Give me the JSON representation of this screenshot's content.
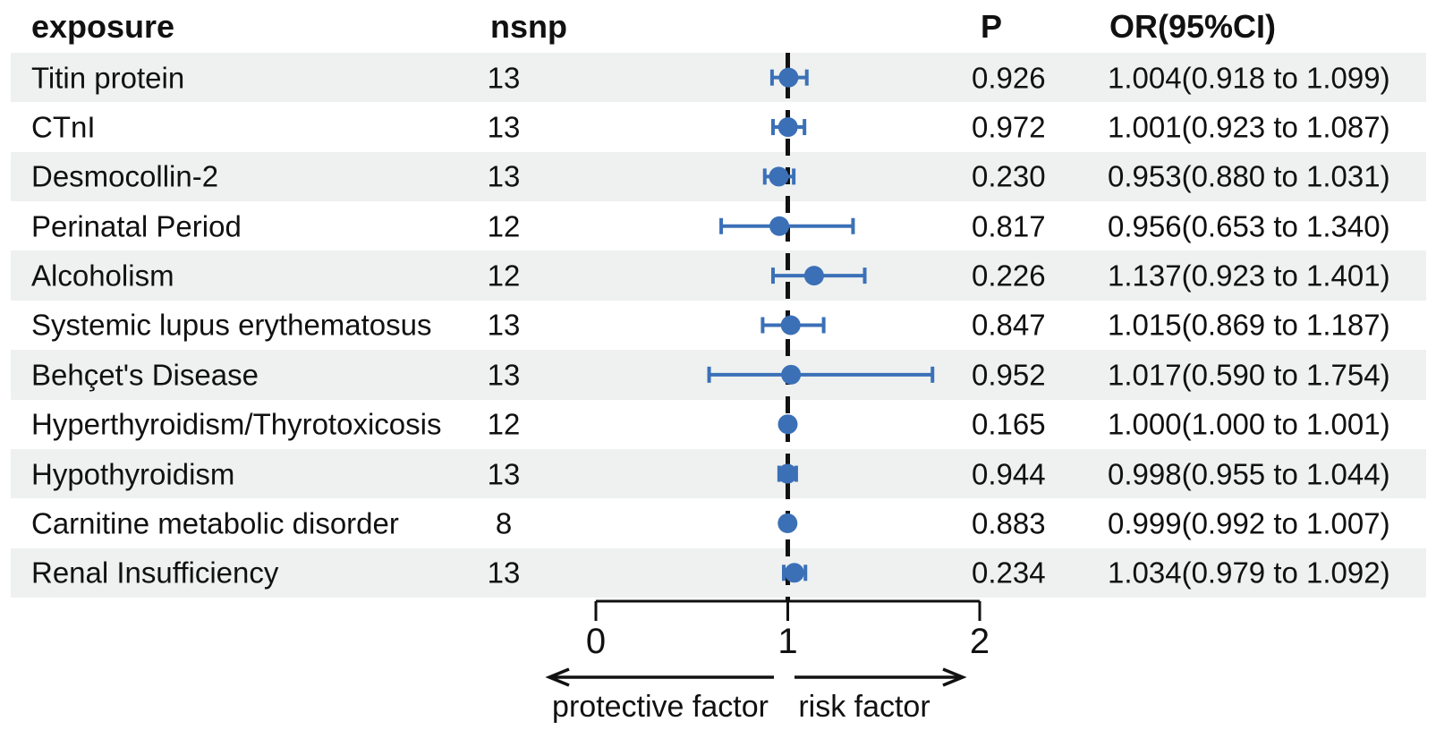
{
  "colors": {
    "marker_blue": "#3b70b7",
    "band_gray": "#eef1f0",
    "ink": "#111111"
  },
  "chart_data": {
    "type": "forest",
    "columns": {
      "exposure": "exposure",
      "nsnp": "nsnp",
      "p": "P",
      "or_ci": "OR(95%CI)"
    },
    "rows": [
      {
        "exposure": "Titin protein",
        "nsnp": "13",
        "p": "0.926",
        "or": 1.004,
        "ci_low": 0.918,
        "ci_high": 1.099,
        "or_ci_text": "1.004(0.918 to 1.099)"
      },
      {
        "exposure": "CTnI",
        "nsnp": "13",
        "p": "0.972",
        "or": 1.001,
        "ci_low": 0.923,
        "ci_high": 1.087,
        "or_ci_text": "1.001(0.923 to 1.087)"
      },
      {
        "exposure": "Desmocollin-2",
        "nsnp": "13",
        "p": "0.230",
        "or": 0.953,
        "ci_low": 0.88,
        "ci_high": 1.031,
        "or_ci_text": "0.953(0.880 to 1.031)"
      },
      {
        "exposure": "Perinatal Period",
        "nsnp": "12",
        "p": "0.817",
        "or": 0.956,
        "ci_low": 0.653,
        "ci_high": 1.34,
        "or_ci_text": "0.956(0.653 to 1.340)"
      },
      {
        "exposure": "Alcoholism",
        "nsnp": "12",
        "p": "0.226",
        "or": 1.137,
        "ci_low": 0.923,
        "ci_high": 1.401,
        "or_ci_text": "1.137(0.923 to 1.401)"
      },
      {
        "exposure": "Systemic lupus erythematosus",
        "nsnp": "13",
        "p": "0.847",
        "or": 1.015,
        "ci_low": 0.869,
        "ci_high": 1.187,
        "or_ci_text": "1.015(0.869 to 1.187)"
      },
      {
        "exposure": "Behçet's Disease",
        "nsnp": "13",
        "p": "0.952",
        "or": 1.017,
        "ci_low": 0.59,
        "ci_high": 1.754,
        "or_ci_text": "1.017(0.590 to 1.754)"
      },
      {
        "exposure": "Hyperthyroidism/Thyrotoxicosis",
        "nsnp": "12",
        "p": "0.165",
        "or": 1.0,
        "ci_low": 1.0,
        "ci_high": 1.001,
        "or_ci_text": "1.000(1.000 to 1.001)"
      },
      {
        "exposure": "Hypothyroidism",
        "nsnp": "13",
        "p": "0.944",
        "or": 0.998,
        "ci_low": 0.955,
        "ci_high": 1.044,
        "or_ci_text": "0.998(0.955 to 1.044)"
      },
      {
        "exposure": "Carnitine metabolic disorder",
        "nsnp": "8",
        "p": "0.883",
        "or": 0.999,
        "ci_low": 0.992,
        "ci_high": 1.007,
        "or_ci_text": "0.999(0.992 to 1.007)"
      },
      {
        "exposure": "Renal Insufficiency",
        "nsnp": "13",
        "p": "0.234",
        "or": 1.034,
        "ci_low": 0.979,
        "ci_high": 1.092,
        "or_ci_text": "1.034(0.979 to 1.092)"
      }
    ],
    "x_axis": {
      "ticks": [
        "0",
        "1",
        "2"
      ],
      "range": [
        0,
        2
      ],
      "reference_line": 1
    },
    "arrow_labels": {
      "left": "protective factor",
      "right": "risk factor"
    }
  }
}
